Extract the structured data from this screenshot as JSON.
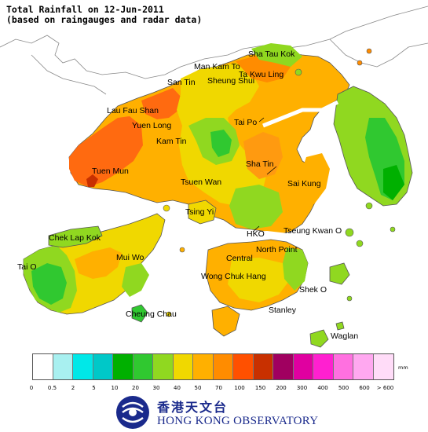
{
  "title": {
    "line1": "Total Rainfall on 12-Jun-2011",
    "line2": "(based on raingauges and radar data)"
  },
  "places": [
    {
      "id": "sha-tau-kok",
      "label": "Sha Tau Kok"
    },
    {
      "id": "man-kam-to",
      "label": "Man Kam To"
    },
    {
      "id": "ta-kwu-ling",
      "label": "Ta Kwu Ling"
    },
    {
      "id": "san-tin",
      "label": "San Tin"
    },
    {
      "id": "sheung-shui",
      "label": "Sheung Shui"
    },
    {
      "id": "lau-fau-shan",
      "label": "Lau Fau Shan"
    },
    {
      "id": "yuen-long",
      "label": "Yuen Long"
    },
    {
      "id": "tai-po",
      "label": "Tai Po"
    },
    {
      "id": "kam-tin",
      "label": "Kam Tin"
    },
    {
      "id": "sha-tin",
      "label": "Sha Tin"
    },
    {
      "id": "tuen-mun",
      "label": "Tuen Mun"
    },
    {
      "id": "tsuen-wan",
      "label": "Tsuen Wan"
    },
    {
      "id": "sai-kung",
      "label": "Sai Kung"
    },
    {
      "id": "tsing-yi",
      "label": "Tsing Yi"
    },
    {
      "id": "chek-lap-kok",
      "label": "Chek Lap Kok"
    },
    {
      "id": "hko",
      "label": "HKO"
    },
    {
      "id": "tseung-kwan-o",
      "label": "Tseung Kwan O"
    },
    {
      "id": "mui-wo",
      "label": "Mui Wo"
    },
    {
      "id": "north-point",
      "label": "North Point"
    },
    {
      "id": "tai-o",
      "label": "Tai O"
    },
    {
      "id": "central",
      "label": "Central"
    },
    {
      "id": "wong-chuk-hang",
      "label": "Wong Chuk Hang"
    },
    {
      "id": "shek-o",
      "label": "Shek O"
    },
    {
      "id": "cheung-chau",
      "label": "Cheung Chau"
    },
    {
      "id": "stanley",
      "label": "Stanley"
    },
    {
      "id": "waglan",
      "label": "Waglan"
    }
  ],
  "legend": {
    "unit": "mm",
    "thresholds": [
      "0",
      "0.5",
      "2",
      "5",
      "10",
      "20",
      "30",
      "40",
      "50",
      "70",
      "100",
      "150",
      "200",
      "300",
      "400",
      "500",
      "600",
      "> 600"
    ],
    "colors": [
      "#ffffff",
      "#a8f0f0",
      "#00e8e8",
      "#00c8c8",
      "#00b000",
      "#30c830",
      "#90d820",
      "#f0d800",
      "#ffb000",
      "#ff8c00",
      "#ff5000",
      "#c83000",
      "#a00060",
      "#e000a0",
      "#ff20d0",
      "#ff70e0",
      "#ffa8f0",
      "#ffdcf8"
    ]
  },
  "organization": {
    "name_zh": "香港天文台",
    "name_en": "HONG KONG OBSERVATORY"
  }
}
